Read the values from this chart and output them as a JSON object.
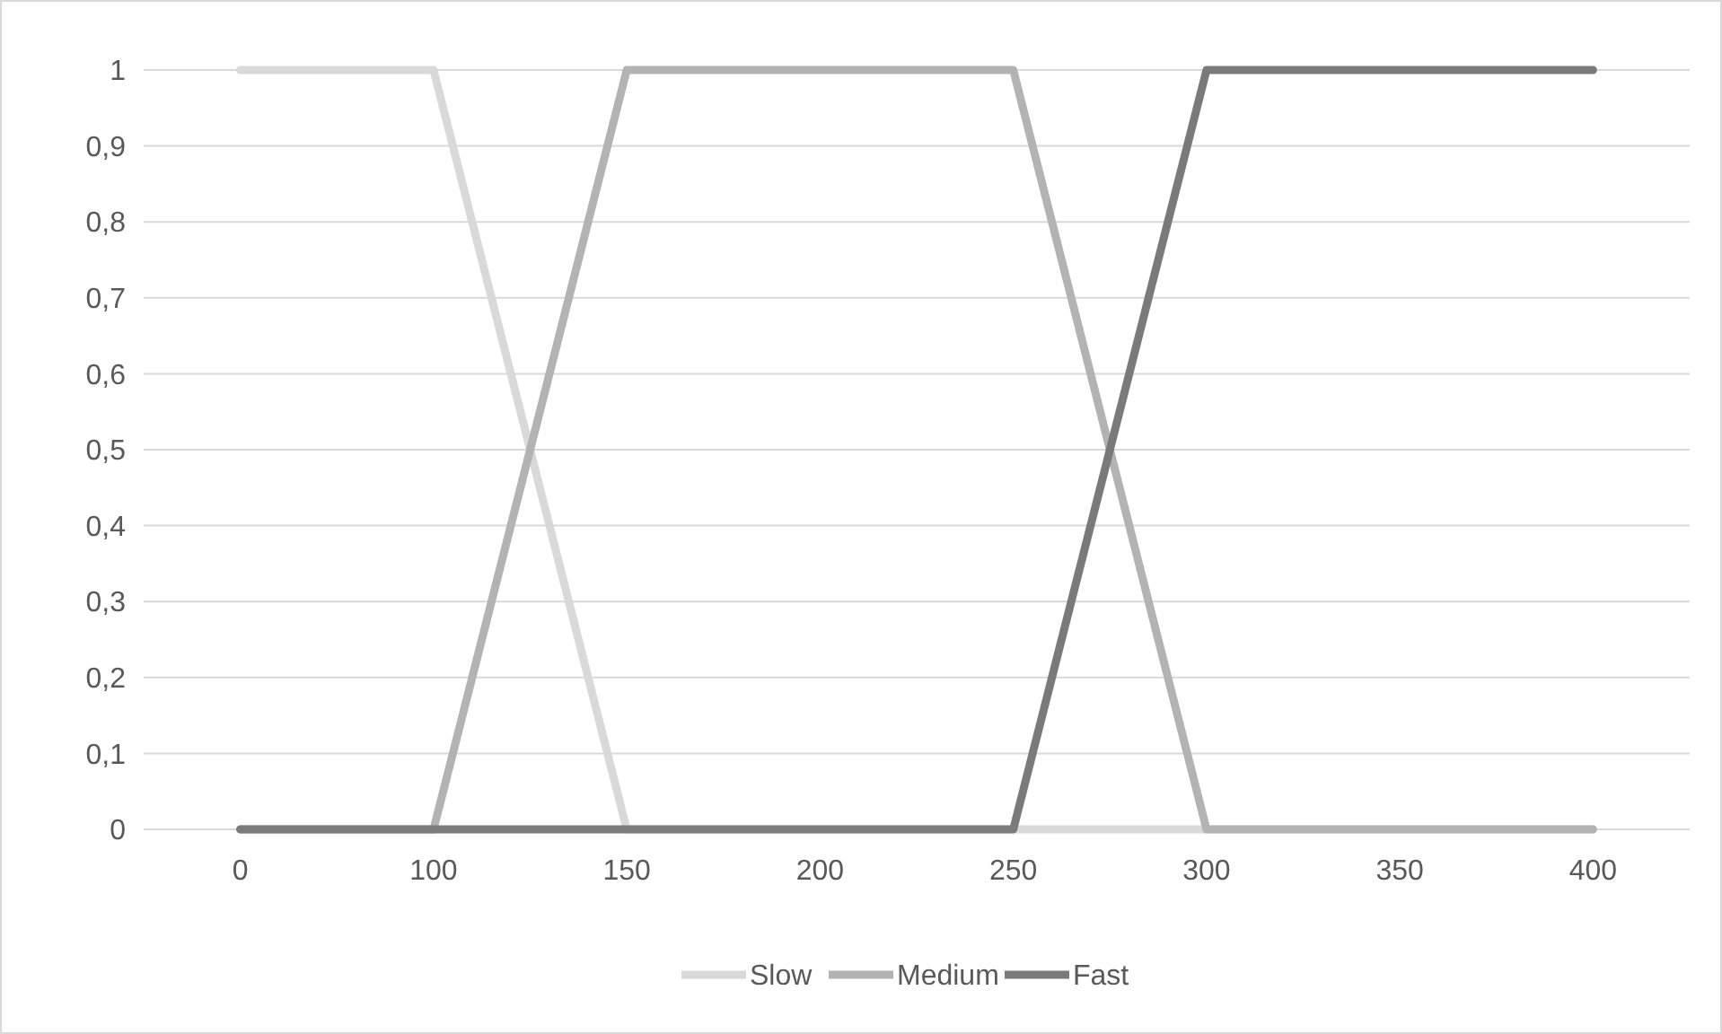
{
  "chart_data": {
    "type": "line",
    "categories": [
      "0",
      "100",
      "150",
      "200",
      "250",
      "300",
      "350",
      "400"
    ],
    "series": [
      {
        "name": "Slow",
        "color": "#d9d9d9",
        "values": [
          1,
          1,
          0,
          0,
          0,
          0,
          0,
          0
        ]
      },
      {
        "name": "Medium",
        "color": "#b3b3b3",
        "values": [
          0,
          0,
          1,
          1,
          1,
          0,
          0,
          0
        ]
      },
      {
        "name": "Fast",
        "color": "#7a7a7a",
        "values": [
          0,
          0,
          0,
          0,
          0,
          1,
          1,
          1
        ]
      }
    ],
    "ylim": [
      0,
      1
    ],
    "yticks": [
      0,
      {
        "value": 0.1,
        "label": "0,1"
      },
      {
        "value": 0.2,
        "label": "0,2"
      },
      {
        "value": 0.3,
        "label": "0,3"
      },
      {
        "value": 0.4,
        "label": "0,4"
      },
      {
        "value": 0.5,
        "label": "0,5"
      },
      {
        "value": 0.6,
        "label": "0,6"
      },
      {
        "value": 0.7,
        "label": "0,7"
      },
      {
        "value": 0.8,
        "label": "0,8"
      },
      {
        "value": 0.9,
        "label": "0,9"
      },
      1
    ],
    "grid": "y",
    "legend": "bottom",
    "marker": "none",
    "line_style": "solid"
  }
}
